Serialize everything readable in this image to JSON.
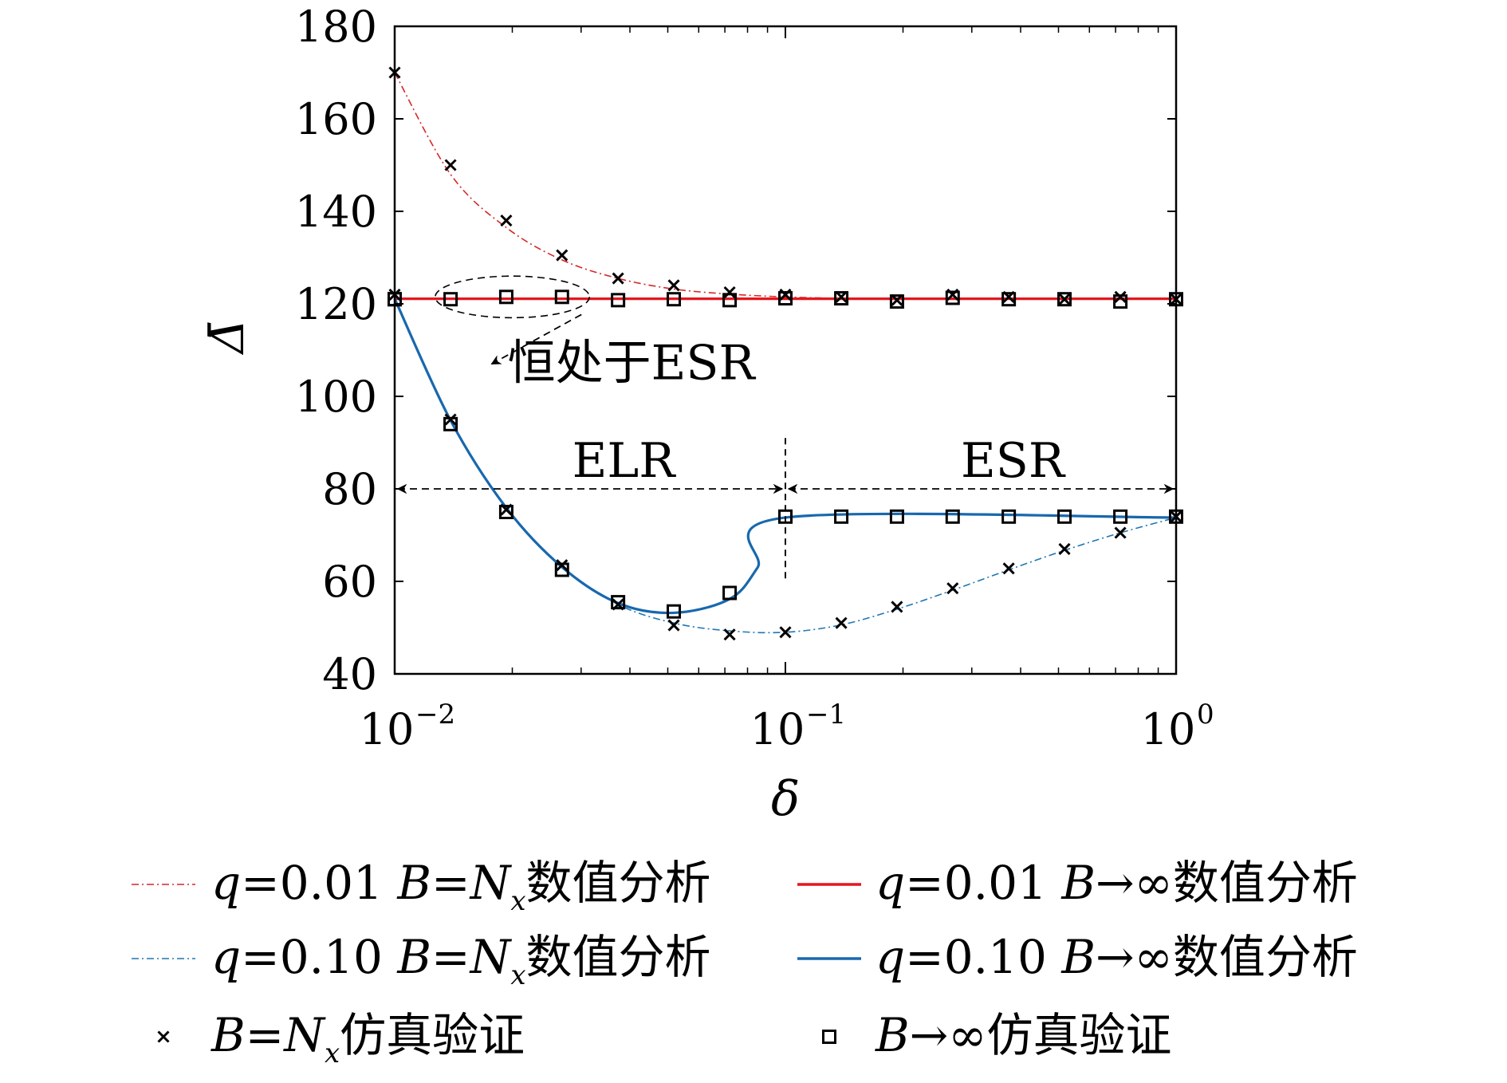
{
  "chart_data": {
    "type": "line",
    "xlabel": "δ",
    "ylabel": "Δ̄",
    "xscale": "log",
    "xlim": [
      0.01,
      1
    ],
    "ylim": [
      40,
      180
    ],
    "x_ticks": [
      {
        "value": 0.01,
        "base": "10",
        "exp": "−2"
      },
      {
        "value": 0.1,
        "base": "10",
        "exp": "−1"
      },
      {
        "value": 1,
        "base": "10",
        "exp": "0"
      }
    ],
    "y_ticks": [
      "180",
      "160",
      "140",
      "120",
      "100",
      "80",
      "60",
      "40"
    ],
    "y_tick_values": [
      180,
      160,
      140,
      120,
      100,
      80,
      60,
      40
    ],
    "grid": false,
    "series": [
      {
        "name": "q=0.01 B=N_x数值分析",
        "style": "dashdot",
        "color": "#d62728",
        "x": [
          0.01,
          0.0139,
          0.0193,
          0.0268,
          0.0373,
          0.0518,
          0.072,
          0.1,
          0.139,
          0.193,
          0.268,
          0.373,
          0.518,
          0.72,
          1.0
        ],
        "y": [
          170,
          148,
          136.5,
          129.5,
          125.5,
          123.2,
          122.1,
          121.5,
          121.2,
          121.1,
          121.1,
          121.1,
          121.1,
          121.1,
          121.1
        ]
      },
      {
        "name": "q=0.01 B→∞数值分析",
        "style": "solid",
        "color": "#e4171d",
        "x": [
          0.01,
          1.0
        ],
        "y": [
          121.1,
          121.1
        ]
      },
      {
        "name": "q=0.10 B=N_x数值分析",
        "style": "dashdot",
        "color": "#1f77b4",
        "x": [
          0.01,
          0.0139,
          0.0193,
          0.0268,
          0.0373,
          0.0518,
          0.072,
          0.1,
          0.139,
          0.193,
          0.268,
          0.373,
          0.518,
          0.72,
          1.0
        ],
        "y": [
          121.1,
          94.8,
          75.9,
          63.1,
          55.0,
          51.0,
          49.3,
          49.0,
          50.6,
          54.0,
          58.1,
          62.5,
          66.7,
          70.5,
          73.8
        ]
      },
      {
        "name": "q=0.10 B→∞数值分析",
        "style": "solid",
        "color": "#1868ae",
        "x": [
          0.01,
          0.0139,
          0.0193,
          0.0268,
          0.0373,
          0.0518,
          0.072,
          0.0849,
          0.1,
          1.0
        ],
        "y": [
          121.1,
          94.8,
          75.9,
          63.1,
          55.3,
          53.2,
          56.2,
          63.0,
          73.8,
          73.8
        ]
      }
    ],
    "markers": [
      {
        "name": "B=N_x仿真验证",
        "symbol": "x",
        "x": [
          0.01,
          0.0139,
          0.0193,
          0.0268,
          0.0373,
          0.0518,
          0.072,
          0.1,
          0.139,
          0.193,
          0.268,
          0.373,
          0.518,
          0.72,
          1.0,
          0.01,
          0.0139,
          0.0193,
          0.0268,
          0.0373,
          0.0518,
          0.072,
          0.1,
          0.139,
          0.193,
          0.268,
          0.373,
          0.518,
          0.72,
          1.0
        ],
        "y": [
          170.0,
          150.0,
          138.0,
          130.5,
          125.5,
          124.0,
          122.5,
          122.0,
          121.5,
          120.8,
          122.0,
          121.5,
          121.0,
          121.5,
          121.0,
          122.0,
          95.0,
          75.5,
          63.5,
          55.0,
          50.5,
          48.5,
          49.0,
          51.0,
          54.5,
          58.5,
          62.8,
          67.0,
          70.5,
          74.0
        ]
      },
      {
        "name": "B→∞仿真验证",
        "symbol": "square",
        "x": [
          0.01,
          0.0139,
          0.0193,
          0.0268,
          0.0373,
          0.0518,
          0.072,
          0.1,
          0.139,
          0.193,
          0.268,
          0.373,
          0.518,
          0.72,
          1.0,
          0.01,
          0.0139,
          0.0193,
          0.0268,
          0.0373,
          0.0518,
          0.072,
          0.1,
          0.139,
          0.193,
          0.268,
          0.373,
          0.518,
          0.72,
          1.0
        ],
        "y": [
          121.0,
          121.0,
          121.5,
          121.5,
          120.8,
          121.0,
          120.8,
          121.2,
          121.2,
          120.5,
          121.3,
          121.0,
          121.0,
          120.5,
          121.0,
          121.0,
          94.0,
          75.0,
          62.5,
          55.5,
          53.5,
          57.5,
          74.0,
          74.0,
          74.0,
          74.0,
          74.0,
          74.0,
          74.0,
          74.0
        ]
      }
    ],
    "annotations": {
      "esr_note": "恒处于ESR",
      "elr_label": "ELR",
      "esr_label": "ESR",
      "region_boundary_x": 0.1,
      "region_arrow_y": 80,
      "ellipse_x": [
        0.0127,
        0.0315
      ],
      "ellipse_y": [
        117,
        126
      ],
      "note_arrow_to": {
        "x": 0.076,
        "y": 107
      }
    },
    "legend": {
      "placement": "bottom",
      "entries": [
        {
          "prefix": "q",
          "mid": "=0.01 ",
          "b": "B",
          "op": "=N",
          "sub": "x",
          "suffix": "数值分析",
          "swatch": "dashdot-red"
        },
        {
          "prefix": "q",
          "mid": "=0.01 ",
          "b": "B",
          "op": "→∞",
          "sub": "",
          "suffix": "数值分析",
          "swatch": "solid-red"
        },
        {
          "prefix": "q",
          "mid": "=0.10 ",
          "b": "B",
          "op": "=N",
          "sub": "x",
          "suffix": "数值分析",
          "swatch": "dashdot-blue"
        },
        {
          "prefix": "q",
          "mid": "=0.10 ",
          "b": "B",
          "op": "→∞",
          "sub": "",
          "suffix": "数值分析",
          "swatch": "solid-blue"
        },
        {
          "prefix": "",
          "mid": "",
          "b": "B",
          "op": "=N",
          "sub": "x",
          "suffix": "仿真验证",
          "swatch": "x-marker"
        },
        {
          "prefix": "",
          "mid": "",
          "b": "B",
          "op": "→∞",
          "sub": "",
          "suffix": "仿真验证",
          "swatch": "square-marker"
        }
      ]
    }
  }
}
